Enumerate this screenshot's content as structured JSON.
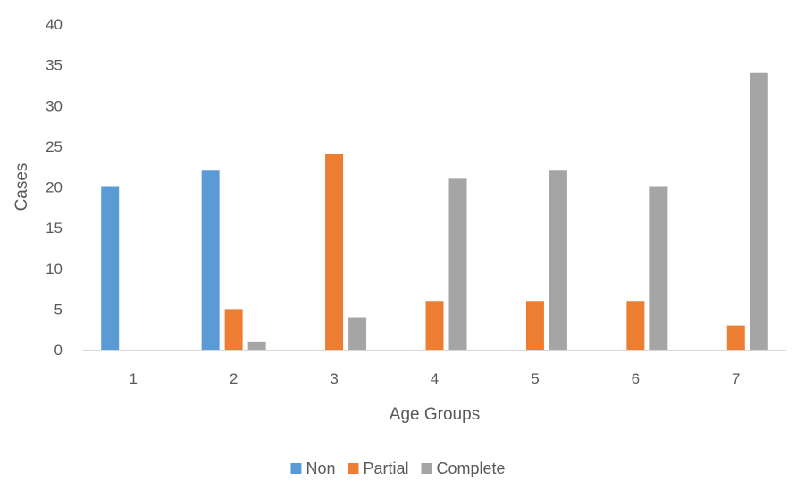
{
  "chart_data": {
    "type": "bar",
    "title": "",
    "xlabel": "Age Groups",
    "ylabel": "Cases",
    "ylim": [
      0,
      40
    ],
    "yticks": [
      0,
      5,
      10,
      15,
      20,
      25,
      30,
      35,
      40
    ],
    "grid": false,
    "legend_position": "bottom",
    "categories": [
      "1",
      "2",
      "3",
      "4",
      "5",
      "6",
      "7"
    ],
    "series": [
      {
        "name": "Non",
        "color": "#5B9BD5",
        "values": [
          20,
          22,
          0,
          0,
          0,
          0,
          0
        ]
      },
      {
        "name": "Partial",
        "color": "#ED7D31",
        "values": [
          0,
          5,
          24,
          6,
          6,
          6,
          3
        ]
      },
      {
        "name": "Complete",
        "color": "#A5A5A5",
        "values": [
          0,
          1,
          4,
          21,
          22,
          20,
          34
        ]
      }
    ]
  }
}
